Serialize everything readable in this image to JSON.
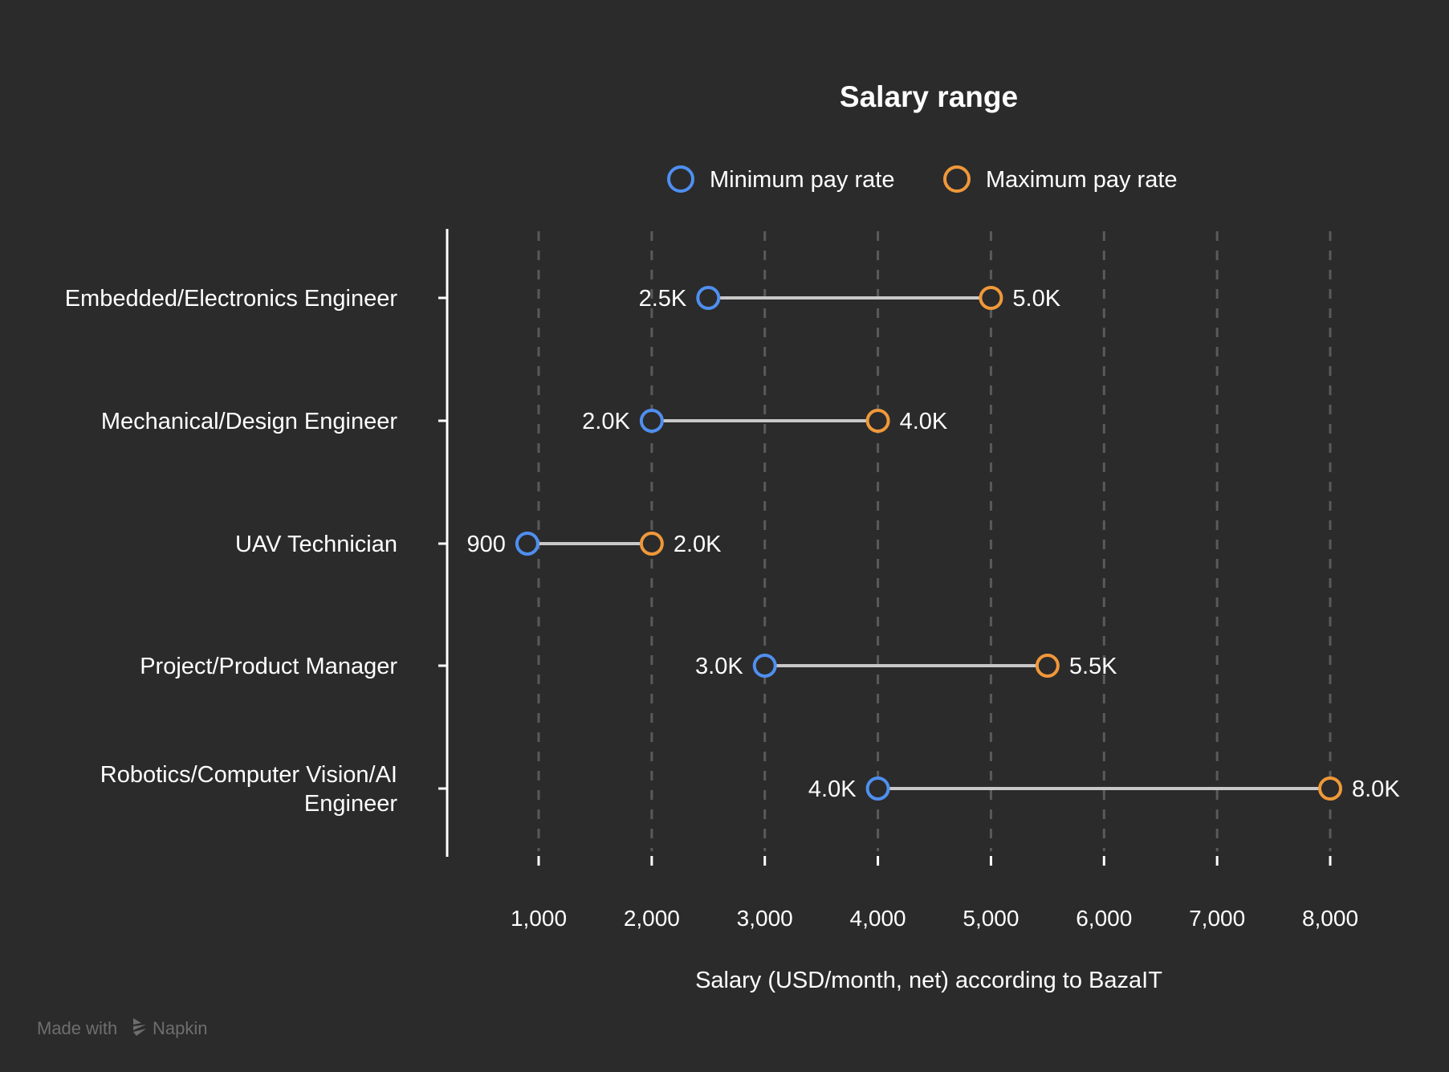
{
  "chart_data": {
    "type": "dumbbell",
    "title": "Salary range",
    "xlabel": "Salary (USD/month, net) according to BazaIT",
    "ylabel": "",
    "xlim": [
      1000,
      8000
    ],
    "xticks": [
      1000,
      2000,
      3000,
      4000,
      5000,
      6000,
      7000,
      8000
    ],
    "xtick_labels": [
      "1,000",
      "2,000",
      "3,000",
      "4,000",
      "5,000",
      "6,000",
      "7,000",
      "8,000"
    ],
    "grid": "vertical dashed",
    "legend_placement": "top",
    "categories": [
      [
        "Embedded/Electronics Engineer"
      ],
      [
        "Mechanical/Design Engineer"
      ],
      [
        "UAV Technician"
      ],
      [
        "Project/Product Manager"
      ],
      [
        "Robotics/Computer Vision/AI",
        "Engineer"
      ]
    ],
    "series": [
      {
        "name": "Minimum pay rate",
        "color": "#4f8ff0",
        "values": [
          2500,
          2000,
          900,
          3000,
          4000
        ],
        "labels": [
          "2.5K",
          "2.0K",
          "900",
          "3.0K",
          "4.0K"
        ]
      },
      {
        "name": "Maximum pay rate",
        "color": "#f0983a",
        "values": [
          5000,
          4000,
          2000,
          5500,
          8000
        ],
        "labels": [
          "5.0K",
          "4.0K",
          "2.0K",
          "5.5K",
          "8.0K"
        ]
      }
    ]
  },
  "colors": {
    "background": "#2b2b2b",
    "connector": "#c8c8c8",
    "grid": "#5a5a5a",
    "watermark": "#6e6e6e"
  },
  "watermark": {
    "text_prefix": "Made with",
    "brand": "Napkin",
    "icon": "napkin-logo-icon"
  }
}
